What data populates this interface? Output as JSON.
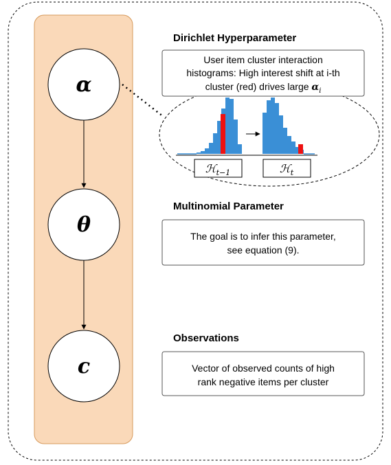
{
  "nodes": [
    {
      "label": "α"
    },
    {
      "label": "θ"
    },
    {
      "label": "c"
    }
  ],
  "sections": [
    {
      "title": "Dirichlet Hyperparameter",
      "lines": [
        "User item cluster interaction",
        "histograms: High interest shift at i-th",
        "cluster (red) drives large "
      ],
      "math": "α",
      "math_sub": "i"
    },
    {
      "title": "Multinomial Parameter",
      "lines": [
        "The goal is to infer this parameter,",
        "see equation (9)."
      ]
    },
    {
      "title": "Observations",
      "lines": [
        "Vector of observed counts of high",
        "rank negative items per cluster"
      ]
    }
  ],
  "histograms": [
    {
      "symbol": "ℋ",
      "sub": "t−1"
    },
    {
      "symbol": "ℋ",
      "sub": "t"
    }
  ]
}
